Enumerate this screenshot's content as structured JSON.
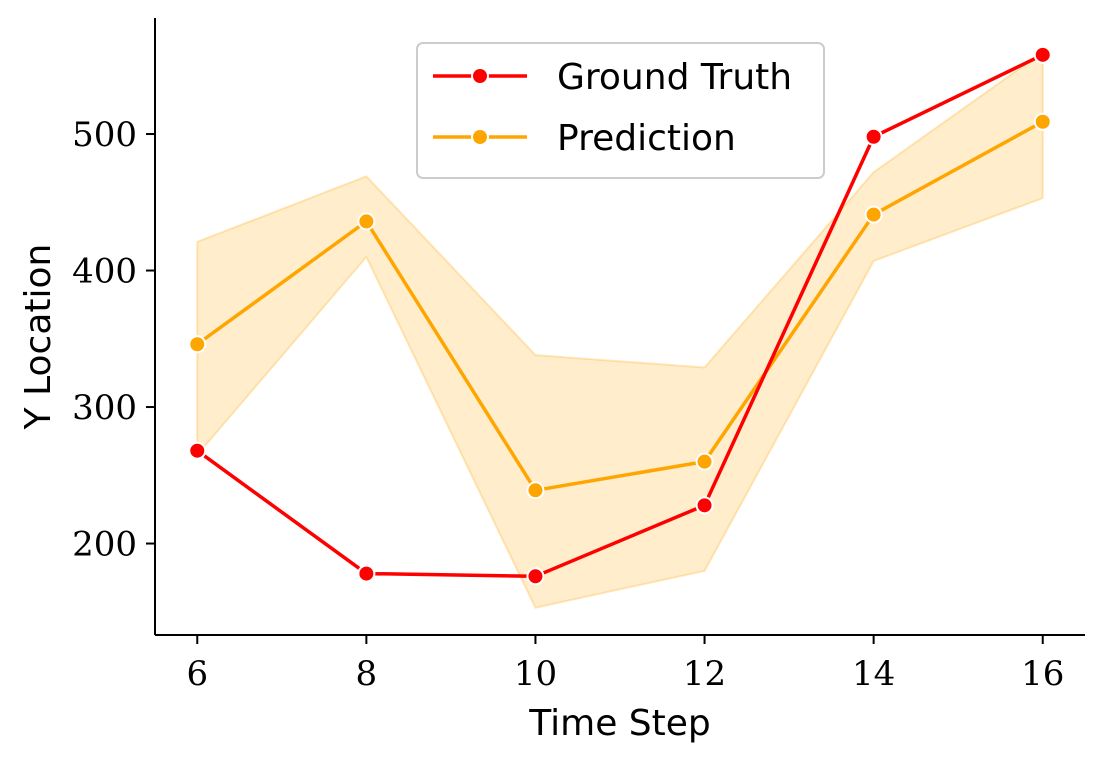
{
  "chart_data": {
    "type": "line",
    "title": "",
    "xlabel": "Time Step",
    "ylabel": "Y Location",
    "x": [
      6,
      8,
      10,
      12,
      14,
      16
    ],
    "xlim": [
      5.5,
      16.5
    ],
    "ylim": [
      133,
      585
    ],
    "xticks": [
      6,
      8,
      10,
      12,
      14,
      16
    ],
    "yticks": [
      200,
      300,
      400,
      500
    ],
    "grid": false,
    "legend_position": "top-center",
    "series": [
      {
        "name": "Ground Truth",
        "color": "#ff0000",
        "marker": "circle",
        "values": [
          268,
          178,
          176,
          228,
          498,
          558
        ]
      },
      {
        "name": "Prediction",
        "color": "#ffa500",
        "marker": "circle",
        "values": [
          346,
          436,
          239,
          260,
          441,
          509
        ],
        "band": {
          "lower": [
            265,
            410,
            153,
            180,
            407,
            453
          ],
          "upper": [
            421,
            469,
            338,
            329,
            472,
            560
          ],
          "color": "#ffa500",
          "opacity": 0.2
        }
      }
    ]
  }
}
